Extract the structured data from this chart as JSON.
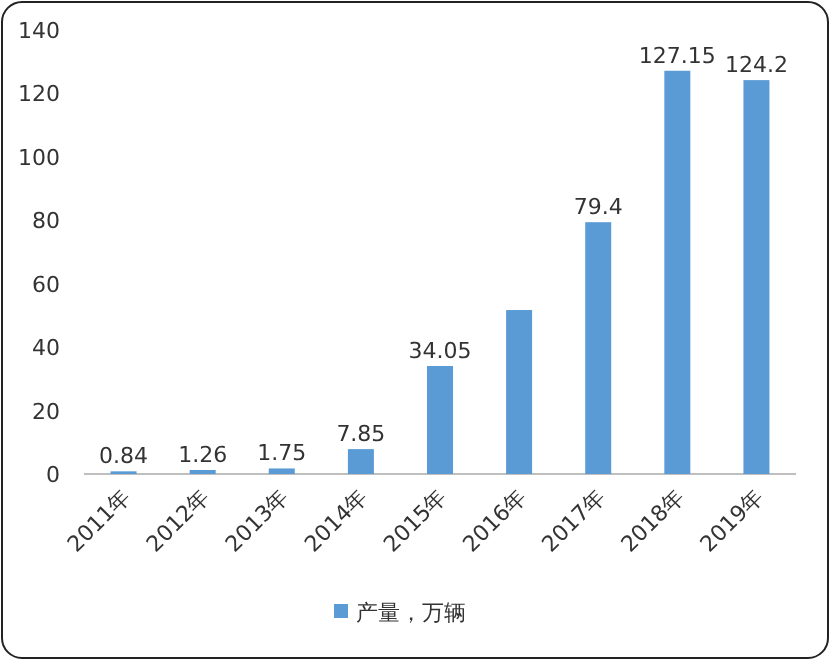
{
  "chart_data": {
    "type": "bar",
    "categories": [
      "2011年",
      "2012年",
      "2013年",
      "2014年",
      "2015年",
      "2016年",
      "2017年",
      "2018年",
      "2019年"
    ],
    "series": [
      {
        "name": "产量，万辆",
        "color": "#5b9bd5",
        "values": [
          0.84,
          1.26,
          1.75,
          7.85,
          34.05,
          51.7,
          79.4,
          127.15,
          124.2
        ],
        "value_labels": [
          "0.84",
          "1.26",
          "1.75",
          "7.85",
          "34.05",
          null,
          "79.4",
          "127.15",
          "124.2"
        ]
      }
    ],
    "ylim": [
      0,
      140
    ],
    "yticks": [
      0,
      20,
      40,
      60,
      80,
      100,
      120,
      140
    ],
    "legend": "bottom"
  }
}
